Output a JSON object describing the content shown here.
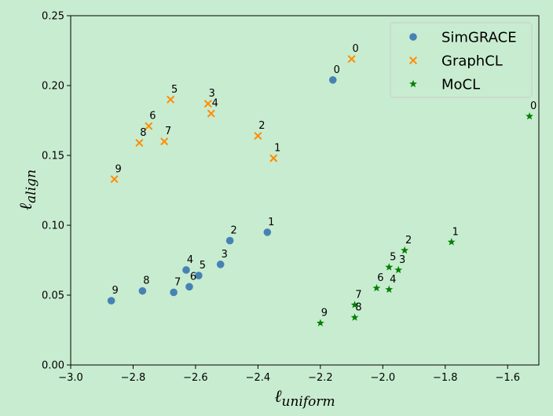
{
  "chart_data": {
    "type": "scatter",
    "title": "",
    "xlabel": "ℓ",
    "xlabel_sub": "uniform",
    "ylabel": "ℓ",
    "ylabel_sub": "align",
    "xlim": [
      -3.0,
      -1.5
    ],
    "ylim": [
      0.0,
      0.25
    ],
    "xticks": [
      -3.0,
      -2.8,
      -2.6,
      -2.4,
      -2.2,
      -2.0,
      -1.8,
      -1.6
    ],
    "xtick_labels": [
      "−3.0",
      "−2.8",
      "−2.6",
      "−2.4",
      "−2.2",
      "−2.0",
      "−1.8",
      "−1.6"
    ],
    "yticks": [
      0.0,
      0.05,
      0.1,
      0.15,
      0.2,
      0.25
    ],
    "ytick_labels": [
      "0.00",
      "0.05",
      "0.10",
      "0.15",
      "0.20",
      "0.25"
    ],
    "grid": false,
    "legend_position": "top-right",
    "series": [
      {
        "name": "SimGRACE",
        "marker": "circle",
        "color": "#4682b4",
        "points": [
          {
            "label": "0",
            "x": -2.16,
            "y": 0.204
          },
          {
            "label": "1",
            "x": -2.37,
            "y": 0.095
          },
          {
            "label": "2",
            "x": -2.49,
            "y": 0.089
          },
          {
            "label": "3",
            "x": -2.52,
            "y": 0.072
          },
          {
            "label": "4",
            "x": -2.63,
            "y": 0.068
          },
          {
            "label": "5",
            "x": -2.59,
            "y": 0.064
          },
          {
            "label": "6",
            "x": -2.62,
            "y": 0.056
          },
          {
            "label": "7",
            "x": -2.67,
            "y": 0.052
          },
          {
            "label": "8",
            "x": -2.77,
            "y": 0.053
          },
          {
            "label": "9",
            "x": -2.87,
            "y": 0.046
          }
        ]
      },
      {
        "name": "GraphCL",
        "marker": "x",
        "color": "#ff8c00",
        "points": [
          {
            "label": "0",
            "x": -2.1,
            "y": 0.219
          },
          {
            "label": "1",
            "x": -2.35,
            "y": 0.148
          },
          {
            "label": "2",
            "x": -2.4,
            "y": 0.164
          },
          {
            "label": "3",
            "x": -2.56,
            "y": 0.187
          },
          {
            "label": "4",
            "x": -2.55,
            "y": 0.18
          },
          {
            "label": "5",
            "x": -2.68,
            "y": 0.19
          },
          {
            "label": "6",
            "x": -2.75,
            "y": 0.171
          },
          {
            "label": "7",
            "x": -2.7,
            "y": 0.16
          },
          {
            "label": "8",
            "x": -2.78,
            "y": 0.159
          },
          {
            "label": "9",
            "x": -2.86,
            "y": 0.133
          }
        ]
      },
      {
        "name": "MoCL",
        "marker": "star",
        "color": "#008000",
        "points": [
          {
            "label": "0",
            "x": -1.53,
            "y": 0.178
          },
          {
            "label": "1",
            "x": -1.78,
            "y": 0.088
          },
          {
            "label": "2",
            "x": -1.93,
            "y": 0.082
          },
          {
            "label": "3",
            "x": -1.95,
            "y": 0.068
          },
          {
            "label": "4",
            "x": -1.98,
            "y": 0.054
          },
          {
            "label": "5",
            "x": -1.98,
            "y": 0.07
          },
          {
            "label": "6",
            "x": -2.02,
            "y": 0.055
          },
          {
            "label": "7",
            "x": -2.09,
            "y": 0.043
          },
          {
            "label": "8",
            "x": -2.09,
            "y": 0.034
          },
          {
            "label": "9",
            "x": -2.2,
            "y": 0.03
          }
        ]
      }
    ]
  }
}
